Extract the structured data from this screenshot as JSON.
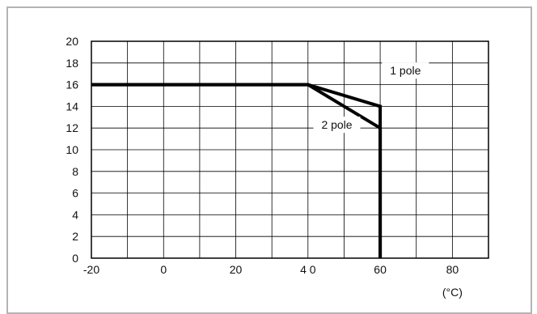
{
  "chart_data": {
    "type": "line",
    "x_unit": "(°C)",
    "xlim": [
      -20,
      90
    ],
    "ylim": [
      0,
      20
    ],
    "x_ticks": [
      -20,
      -10,
      0,
      10,
      20,
      30,
      40,
      50,
      60,
      70,
      80,
      90
    ],
    "x_tick_labels": [
      "-20",
      "0",
      "20",
      "4 0",
      "60",
      "80"
    ],
    "x_tick_label_values": [
      -20,
      0,
      20,
      40,
      60,
      80
    ],
    "y_ticks": [
      0,
      2,
      4,
      6,
      8,
      10,
      12,
      14,
      16,
      18,
      20
    ],
    "y_tick_labels": [
      "0",
      "2",
      "4",
      "6",
      "8",
      "10",
      "12",
      "14",
      "16",
      "18",
      "20"
    ],
    "grid": true,
    "series": [
      {
        "name": "1 pole",
        "points": [
          [
            -20,
            16
          ],
          [
            40,
            16
          ],
          [
            60,
            14
          ],
          [
            60,
            0
          ]
        ]
      },
      {
        "name": "2 pole",
        "points": [
          [
            -20,
            16
          ],
          [
            40,
            16
          ],
          [
            60,
            12
          ],
          [
            60,
            0
          ]
        ]
      }
    ],
    "annotations": [
      {
        "text": "1 pole",
        "at": [
          67,
          17.3
        ]
      },
      {
        "text": "2 pole",
        "at": [
          48,
          12.3
        ]
      }
    ]
  }
}
